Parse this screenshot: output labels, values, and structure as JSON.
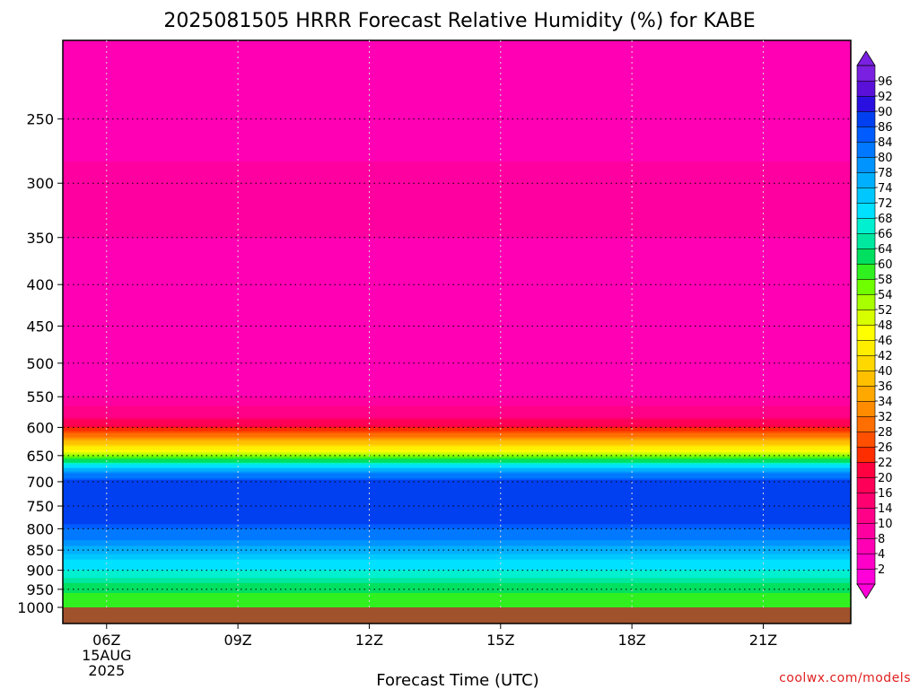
{
  "chart_data": {
    "type": "heatmap",
    "title": "2025081505 HRRR Forecast Relative Humidity (%) for KABE",
    "xlabel": "Forecast Time (UTC)",
    "ylabel": "",
    "x_ticks": [
      {
        "hour": 6,
        "label": "06Z",
        "sub1": "15AUG",
        "sub2": "2025"
      },
      {
        "hour": 9,
        "label": "09Z"
      },
      {
        "hour": 12,
        "label": "12Z"
      },
      {
        "hour": 15,
        "label": "15Z"
      },
      {
        "hour": 18,
        "label": "18Z"
      },
      {
        "hour": 21,
        "label": "21Z"
      }
    ],
    "y_ticks": [
      250,
      300,
      350,
      400,
      450,
      500,
      550,
      600,
      650,
      700,
      750,
      800,
      850,
      900,
      950,
      1000
    ],
    "xlim": [
      5,
      23
    ],
    "ylim_hPa": [
      200,
      1000
    ],
    "y_scale": "log-pressure",
    "grid": true,
    "colorbar": {
      "levels": [
        2,
        4,
        8,
        10,
        14,
        16,
        20,
        22,
        26,
        28,
        32,
        34,
        36,
        40,
        42,
        46,
        48,
        52,
        54,
        58,
        60,
        64,
        66,
        68,
        72,
        74,
        78,
        80,
        84,
        86,
        90,
        92,
        96
      ],
      "colors": [
        "#ff00d8",
        "#ff00c8",
        "#ff00b4",
        "#ff00a0",
        "#ff0088",
        "#ff0070",
        "#ff0058",
        "#ff0040",
        "#ff2e00",
        "#ff5000",
        "#ff6e00",
        "#ff8c00",
        "#ffa800",
        "#ffc000",
        "#ffd800",
        "#ffee00",
        "#ffff00",
        "#d8ff00",
        "#a8ff00",
        "#70ff00",
        "#30f020",
        "#00e060",
        "#00e8a0",
        "#00f0d0",
        "#00e0ff",
        "#00c8ff",
        "#00b0ff",
        "#0094ff",
        "#0078ff",
        "#005cff",
        "#0040f0",
        "#2a10e0",
        "#5a10d8",
        "#7a20e0"
      ]
    },
    "profile_rh": [
      {
        "p": 200,
        "rh": 6
      },
      {
        "p": 220,
        "rh": 5
      },
      {
        "p": 250,
        "rh": 5
      },
      {
        "p": 300,
        "rh": 9
      },
      {
        "p": 350,
        "rh": 8
      },
      {
        "p": 400,
        "rh": 7
      },
      {
        "p": 450,
        "rh": 5
      },
      {
        "p": 500,
        "rh": 6
      },
      {
        "p": 550,
        "rh": 8
      },
      {
        "p": 580,
        "rh": 12
      },
      {
        "p": 600,
        "rh": 22
      },
      {
        "p": 620,
        "rh": 34
      },
      {
        "p": 640,
        "rh": 46
      },
      {
        "p": 660,
        "rh": 62
      },
      {
        "p": 680,
        "rh": 78
      },
      {
        "p": 700,
        "rh": 88
      },
      {
        "p": 740,
        "rh": 90
      },
      {
        "p": 780,
        "rh": 88
      },
      {
        "p": 800,
        "rh": 84
      },
      {
        "p": 840,
        "rh": 78
      },
      {
        "p": 880,
        "rh": 70
      },
      {
        "p": 920,
        "rh": 66
      },
      {
        "p": 960,
        "rh": 60
      },
      {
        "p": 1000,
        "rh": 58
      }
    ],
    "ground_color": "#a0522d"
  },
  "credit": "coolwx.com/models"
}
